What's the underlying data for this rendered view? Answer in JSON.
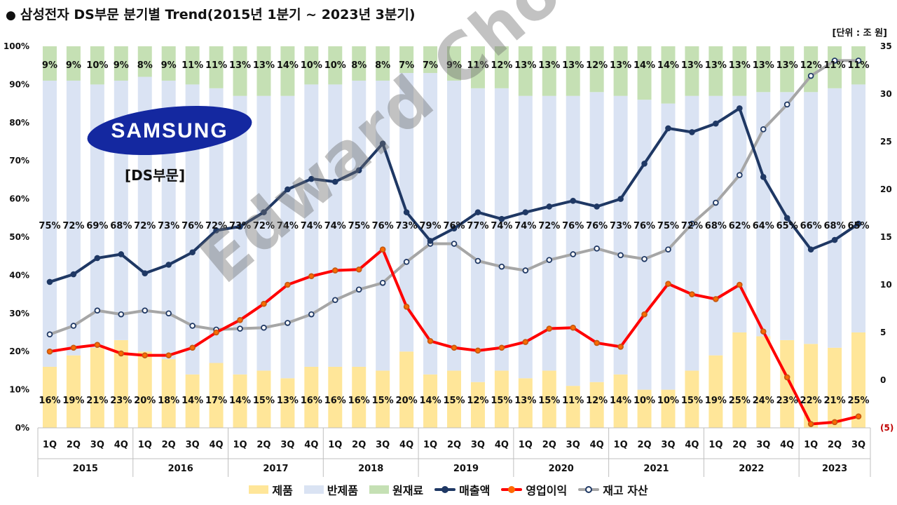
{
  "title": "삼성전자 DS부문 분기별 Trend(2015년 1분기 ~   2023년 3분기)",
  "title_bullet": "●",
  "unit_label": "[단위 : 조 원]",
  "brand": "SAMSUNG",
  "division_label": "[DS부문]",
  "watermark": "Edward Choi",
  "colors": {
    "products": "#FFE699",
    "semi_products": "#DAE3F3",
    "materials": "#C5E0B4",
    "revenue": "#1F3864",
    "operating_profit": "#FF0000",
    "inventory": "#A6A6A6",
    "inventory_marker": "#1F3864",
    "negative_tick": "#C00000",
    "logo_bg": "#1428A0"
  },
  "chart_data": {
    "type": "bar",
    "stacked": true,
    "quarters": [
      "1Q",
      "2Q",
      "3Q",
      "4Q",
      "1Q",
      "2Q",
      "3Q",
      "4Q",
      "1Q",
      "2Q",
      "3Q",
      "4Q",
      "1Q",
      "2Q",
      "3Q",
      "4Q",
      "1Q",
      "2Q",
      "3Q",
      "4Q",
      "1Q",
      "2Q",
      "3Q",
      "4Q",
      "1Q",
      "2Q",
      "3Q",
      "4Q",
      "1Q",
      "2Q",
      "3Q",
      "4Q",
      "1Q",
      "2Q",
      "3Q"
    ],
    "years": [
      "2015",
      "2016",
      "2017",
      "2018",
      "2019",
      "2020",
      "2021",
      "2022",
      "2023"
    ],
    "quarters_per_year": [
      4,
      4,
      4,
      4,
      4,
      4,
      4,
      4,
      3
    ],
    "left_axis": {
      "ylim": [
        0,
        100
      ],
      "ticks": [
        "0%",
        "10%",
        "20%",
        "30%",
        "40%",
        "50%",
        "60%",
        "70%",
        "80%",
        "90%",
        "100%"
      ]
    },
    "right_axis": {
      "ylim": [
        -5,
        35
      ],
      "ticks": [
        "(5)",
        "0",
        "5",
        "10",
        "15",
        "20",
        "25",
        "30",
        "35"
      ]
    },
    "series": [
      {
        "name": "제품",
        "kind": "bar",
        "axis": "left",
        "values": [
          16,
          19,
          21,
          23,
          20,
          18,
          14,
          17,
          14,
          15,
          13,
          16,
          16,
          16,
          15,
          20,
          14,
          15,
          12,
          15,
          13,
          15,
          11,
          12,
          14,
          10,
          10,
          15,
          19,
          25,
          24,
          23,
          22,
          21,
          25
        ],
        "labels": [
          "16%",
          "19%",
          "21%",
          "23%",
          "20%",
          "18%",
          "14%",
          "17%",
          "14%",
          "15%",
          "13%",
          "16%",
          "16%",
          "16%",
          "15%",
          "20%",
          "14%",
          "15%",
          "12%",
          "15%",
          "13%",
          "15%",
          "11%",
          "12%",
          "14%",
          "10%",
          "10%",
          "15%",
          "19%",
          "25%",
          "24%",
          "23%",
          "22%",
          "21%",
          "25%"
        ]
      },
      {
        "name": "반제품",
        "kind": "bar",
        "axis": "left",
        "values": [
          75,
          72,
          69,
          68,
          72,
          73,
          76,
          72,
          73,
          72,
          74,
          74,
          74,
          75,
          76,
          73,
          79,
          76,
          77,
          74,
          74,
          72,
          76,
          76,
          73,
          76,
          75,
          72,
          68,
          62,
          64,
          65,
          66,
          68,
          65
        ],
        "labels": [
          "75%",
          "72%",
          "69%",
          "68%",
          "72%",
          "73%",
          "76%",
          "72%",
          "73%",
          "72%",
          "74%",
          "74%",
          "74%",
          "75%",
          "76%",
          "73%",
          "79%",
          "76%",
          "77%",
          "74%",
          "74%",
          "72%",
          "76%",
          "76%",
          "73%",
          "76%",
          "75%",
          "72%",
          "68%",
          "62%",
          "64%",
          "65%",
          "66%",
          "68%",
          "65%"
        ]
      },
      {
        "name": "원재료",
        "kind": "bar",
        "axis": "left",
        "values": [
          9,
          9,
          10,
          9,
          8,
          9,
          11,
          11,
          13,
          13,
          14,
          10,
          10,
          8,
          8,
          7,
          7,
          9,
          11,
          12,
          13,
          13,
          13,
          12,
          13,
          14,
          14,
          13,
          13,
          13,
          13,
          13,
          12,
          11,
          11
        ],
        "labels": [
          "9%",
          "9%",
          "10%",
          "9%",
          "8%",
          "9%",
          "11%",
          "11%",
          "13%",
          "13%",
          "14%",
          "10%",
          "10%",
          "8%",
          "8%",
          "7%",
          "7%",
          "9%",
          "11%",
          "12%",
          "13%",
          "13%",
          "13%",
          "12%",
          "13%",
          "14%",
          "14%",
          "13%",
          "13%",
          "13%",
          "13%",
          "13%",
          "12%",
          "11%",
          "11%"
        ]
      },
      {
        "name": "매출액",
        "kind": "line",
        "axis": "right",
        "values": [
          10.3,
          11.1,
          12.8,
          13.2,
          11.2,
          12.1,
          13.4,
          15.7,
          16.1,
          17.6,
          20.0,
          21.1,
          20.8,
          22.0,
          24.8,
          17.6,
          14.6,
          15.9,
          17.6,
          16.9,
          17.6,
          18.2,
          18.8,
          18.2,
          19.0,
          22.7,
          26.4,
          26.0,
          26.9,
          28.5,
          21.3,
          17.0,
          13.7,
          14.7,
          16.4
        ]
      },
      {
        "name": "영업이익",
        "kind": "line",
        "axis": "right",
        "values": [
          3.0,
          3.4,
          3.7,
          2.8,
          2.6,
          2.6,
          3.4,
          5.0,
          6.3,
          8.0,
          10.0,
          10.9,
          11.5,
          11.6,
          13.7,
          7.7,
          4.1,
          3.4,
          3.1,
          3.4,
          4.0,
          5.4,
          5.5,
          3.9,
          3.5,
          6.9,
          10.1,
          9.0,
          8.5,
          10.0,
          5.1,
          0.3,
          -4.6,
          -4.4,
          -3.8
        ]
      },
      {
        "name": "재고 자산",
        "kind": "line",
        "axis": "right",
        "values": [
          4.8,
          5.7,
          7.3,
          6.9,
          7.3,
          7.0,
          5.7,
          5.3,
          5.4,
          5.5,
          6.0,
          6.9,
          8.4,
          9.5,
          10.2,
          12.4,
          14.3,
          14.3,
          12.5,
          11.9,
          11.5,
          12.6,
          13.2,
          13.8,
          13.1,
          12.7,
          13.7,
          16.4,
          18.6,
          21.5,
          26.3,
          28.9,
          31.9,
          33.5,
          33.5
        ]
      }
    ]
  },
  "legend": [
    {
      "name": "제품",
      "kind": "bar"
    },
    {
      "name": "반제품",
      "kind": "bar"
    },
    {
      "name": "원재료",
      "kind": "bar"
    },
    {
      "name": "매출액",
      "kind": "line"
    },
    {
      "name": "영업이익",
      "kind": "line"
    },
    {
      "name": "재고 자산",
      "kind": "line"
    }
  ]
}
